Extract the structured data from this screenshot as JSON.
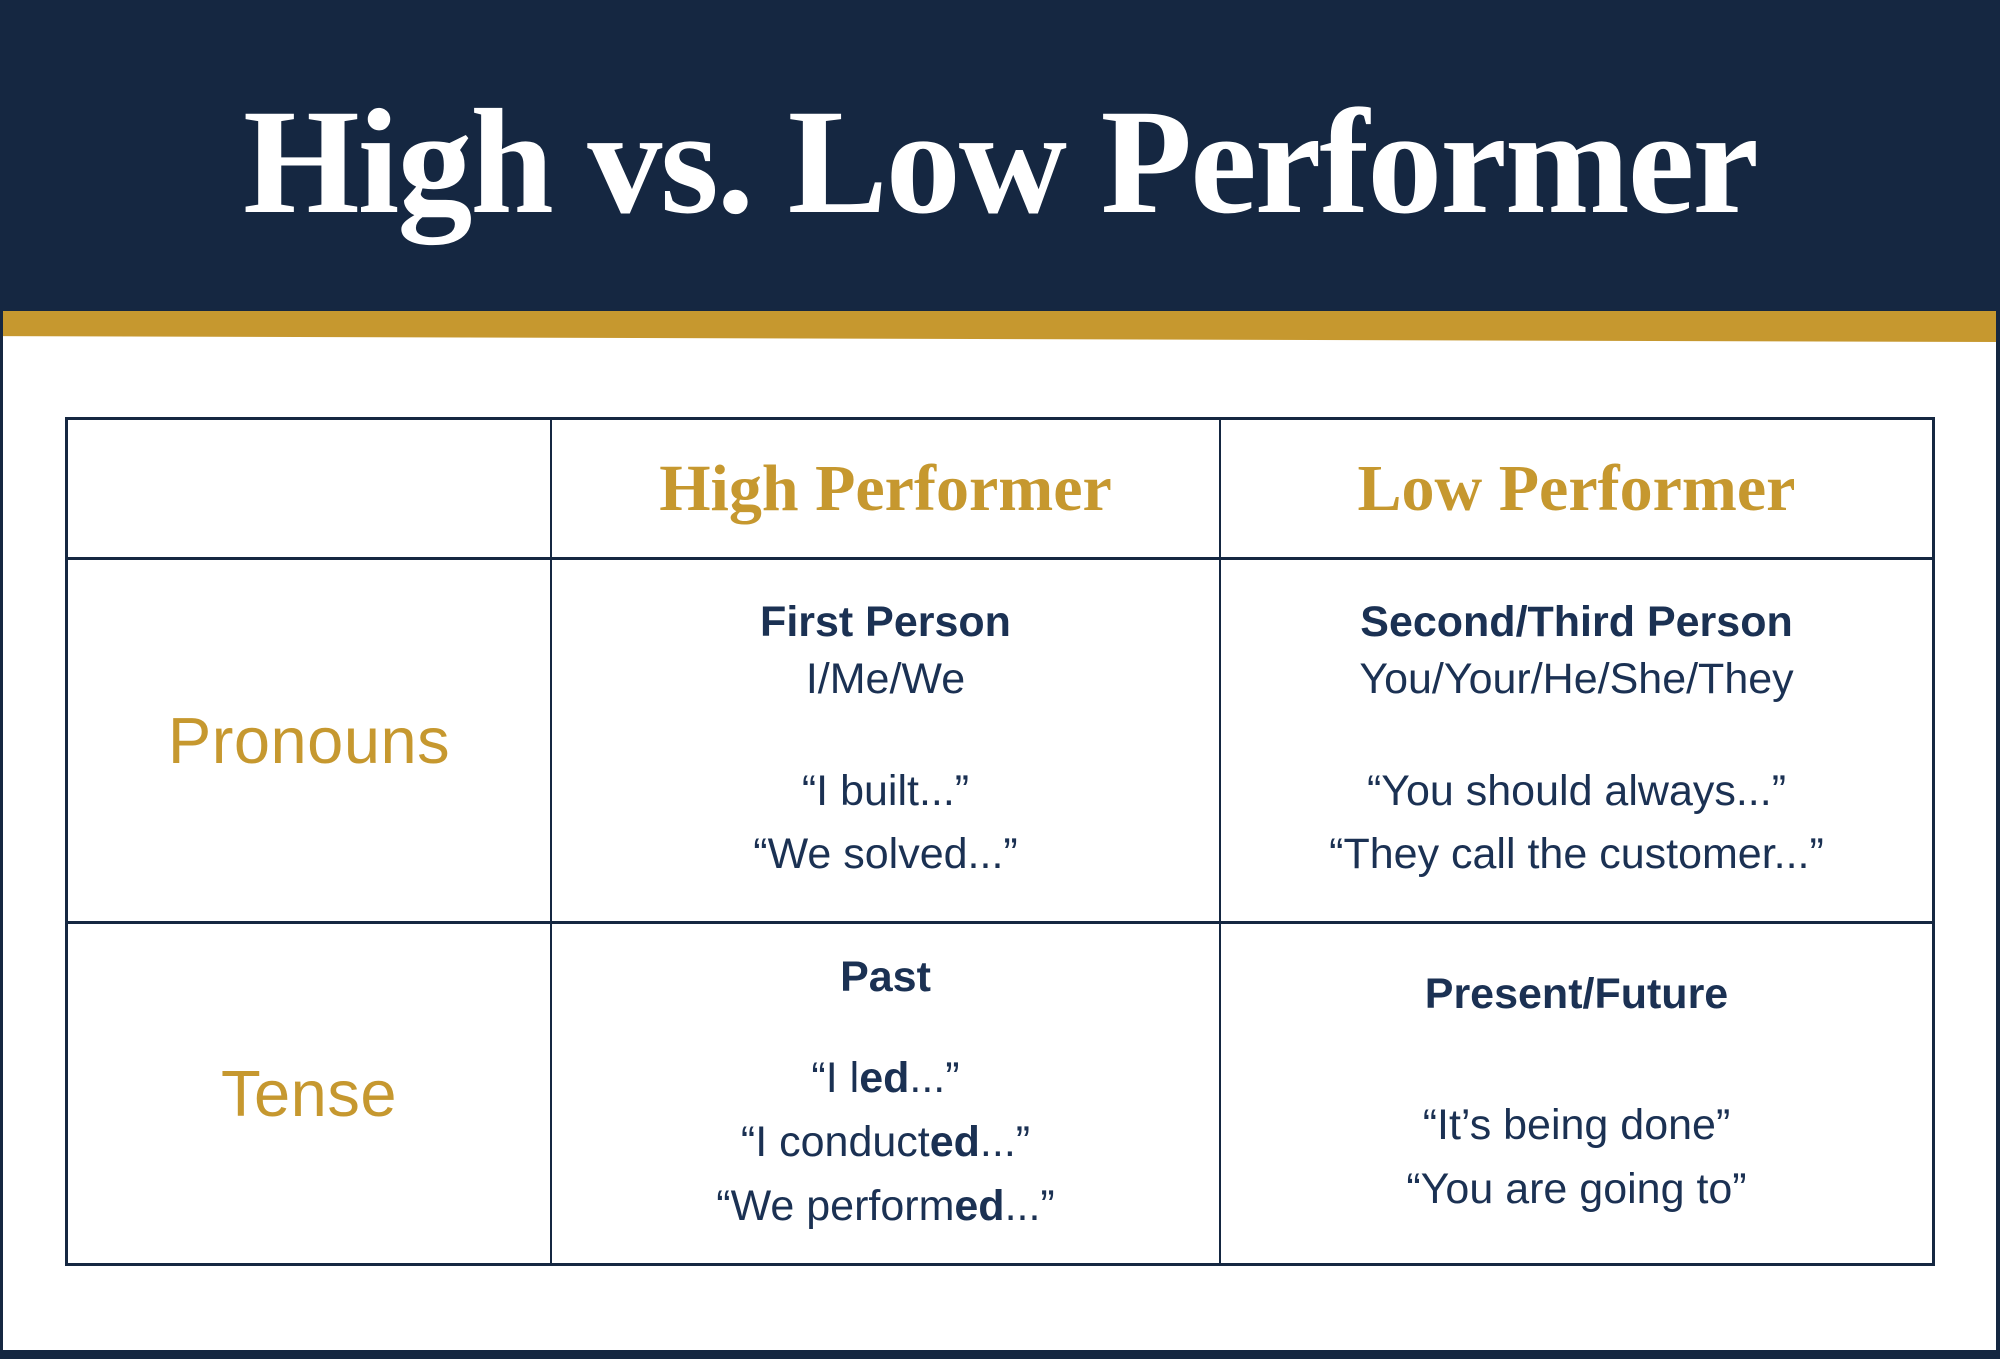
{
  "colors": {
    "navy": "#152741",
    "gold": "#C6982F",
    "text_navy": "#1B3153",
    "white": "#FFFFFF"
  },
  "header": {
    "title": "High vs. Low Performer"
  },
  "table": {
    "header": {
      "empty": "",
      "col_high": "High Performer",
      "col_low": "Low Performer"
    },
    "rows": [
      {
        "label": "Pronouns",
        "high": {
          "heading": "First Person",
          "subheading": "I/Me/We",
          "quotes": [
            [
              {
                "t": "“I built...”"
              }
            ],
            [
              {
                "t": "“We solved...”"
              }
            ]
          ]
        },
        "low": {
          "heading": "Second/Third Person",
          "subheading": "You/Your/He/She/They",
          "quotes": [
            [
              {
                "t": "“You should always...”"
              }
            ],
            [
              {
                "t": "“They call the customer...”"
              }
            ]
          ]
        }
      },
      {
        "label": "Tense",
        "high": {
          "heading": "Past",
          "subheading": "",
          "quotes": [
            [
              {
                "t": "“I l"
              },
              {
                "t": "ed",
                "b": true
              },
              {
                "t": "...”"
              }
            ],
            [
              {
                "t": "“I conduct"
              },
              {
                "t": "ed",
                "b": true
              },
              {
                "t": "...”"
              }
            ],
            [
              {
                "t": "“We perform"
              },
              {
                "t": "ed",
                "b": true
              },
              {
                "t": "...”"
              }
            ]
          ]
        },
        "low": {
          "heading": "Present/Future",
          "subheading": "",
          "quotes": [
            [
              {
                "t": "“It’s being done”"
              }
            ],
            [
              {
                "t": "“You are going to”"
              }
            ]
          ]
        }
      }
    ]
  }
}
